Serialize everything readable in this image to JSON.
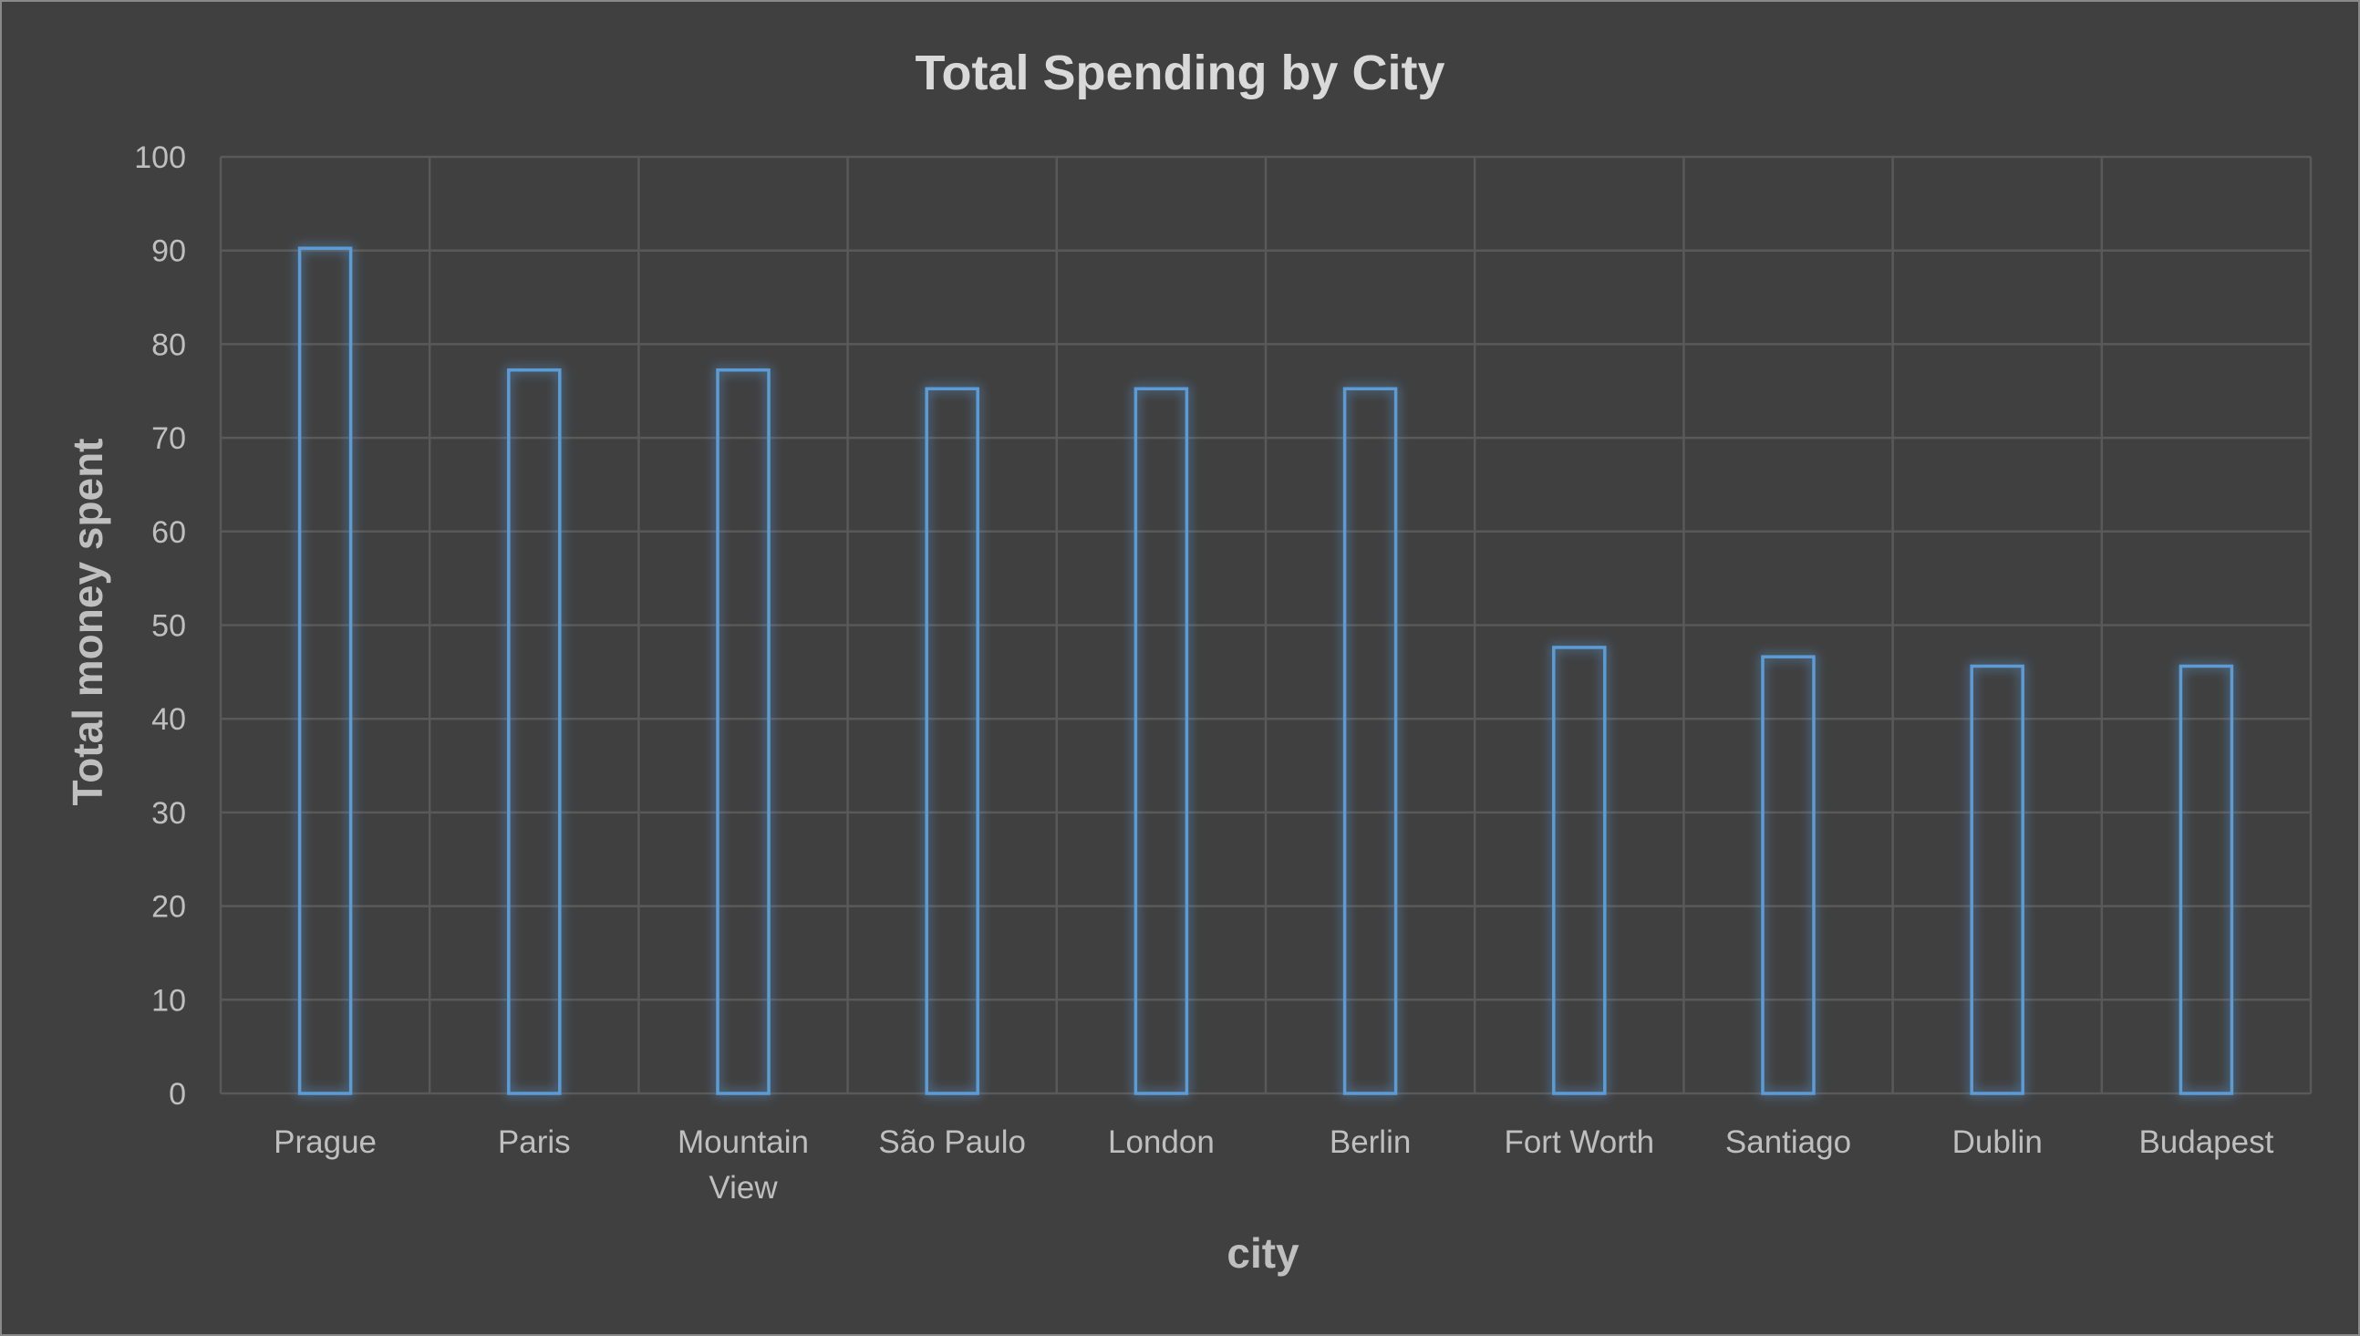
{
  "chart_data": {
    "type": "bar",
    "title": "Total Spending by City",
    "xlabel": "city",
    "ylabel": "Total money spent",
    "categories": [
      [
        "Prague"
      ],
      [
        "Paris"
      ],
      [
        "Mountain",
        "View"
      ],
      [
        "São Paulo"
      ],
      [
        "London"
      ],
      [
        "Berlin"
      ],
      [
        "Fort Worth"
      ],
      [
        "Santiago"
      ],
      [
        "Dublin"
      ],
      [
        "Budapest"
      ]
    ],
    "values": [
      90.24,
      77.24,
      77.24,
      75.24,
      75.24,
      75.24,
      47.62,
      46.62,
      45.62,
      45.62
    ],
    "ylim": [
      0,
      100
    ],
    "yticks": [
      "0",
      "10",
      "20",
      "30",
      "40",
      "50",
      "60",
      "70",
      "80",
      "90",
      "100"
    ],
    "grid": true,
    "legend": "none",
    "colors": {
      "background": "#404040",
      "bar_outline": "#5b9bd5",
      "gridline": "#595959",
      "text": "#bfbfbf",
      "title": "#d9d9d9"
    }
  }
}
